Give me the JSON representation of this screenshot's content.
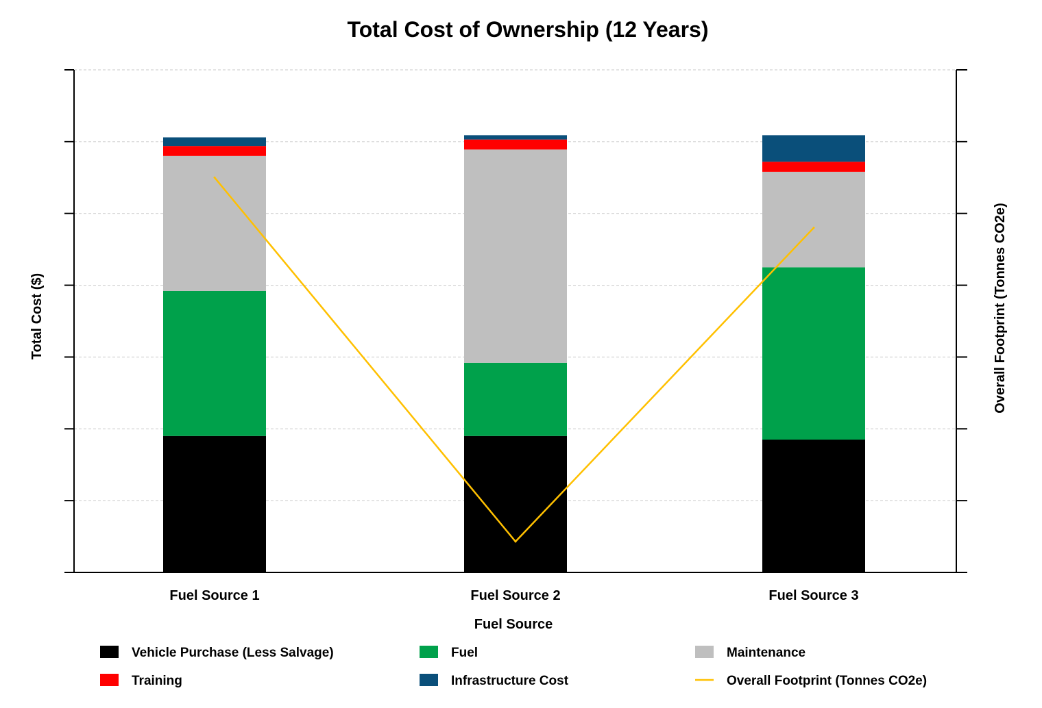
{
  "chart_data": {
    "type": "bar",
    "stacked": true,
    "title": "Total Cost of Ownership (12 Years)",
    "xlabel": "Fuel Source",
    "ylabel": "Total Cost ($)",
    "y2label": "Overall Footprint (Tonnes CO2e)",
    "categories": [
      "Fuel Source 1",
      "Fuel Source 2",
      "Fuel Source 3"
    ],
    "ylim": [
      0,
      7
    ],
    "y2lim": [
      0,
      7
    ],
    "y_tick_count": 7,
    "grid": true,
    "legend_position": "bottom",
    "series": [
      {
        "name": "Vehicle Purchase (Less Salvage)",
        "color": "#000000",
        "values": [
          1.9,
          1.9,
          1.85
        ]
      },
      {
        "name": "Fuel",
        "color": "#00a14b",
        "values": [
          2.02,
          1.02,
          2.4
        ]
      },
      {
        "name": "Maintenance",
        "color": "#bfbfbf",
        "values": [
          1.88,
          2.97,
          1.33
        ]
      },
      {
        "name": "Training",
        "color": "#ff0000",
        "values": [
          0.14,
          0.14,
          0.14
        ]
      },
      {
        "name": "Infrastructure Cost",
        "color": "#0a4f7a",
        "values": [
          0.12,
          0.06,
          0.37
        ]
      }
    ],
    "line_series": {
      "name": "Overall Footprint (Tonnes CO2e)",
      "color": "#ffc000",
      "axis": "right",
      "values": [
        5.5,
        0.43,
        4.8
      ]
    }
  }
}
